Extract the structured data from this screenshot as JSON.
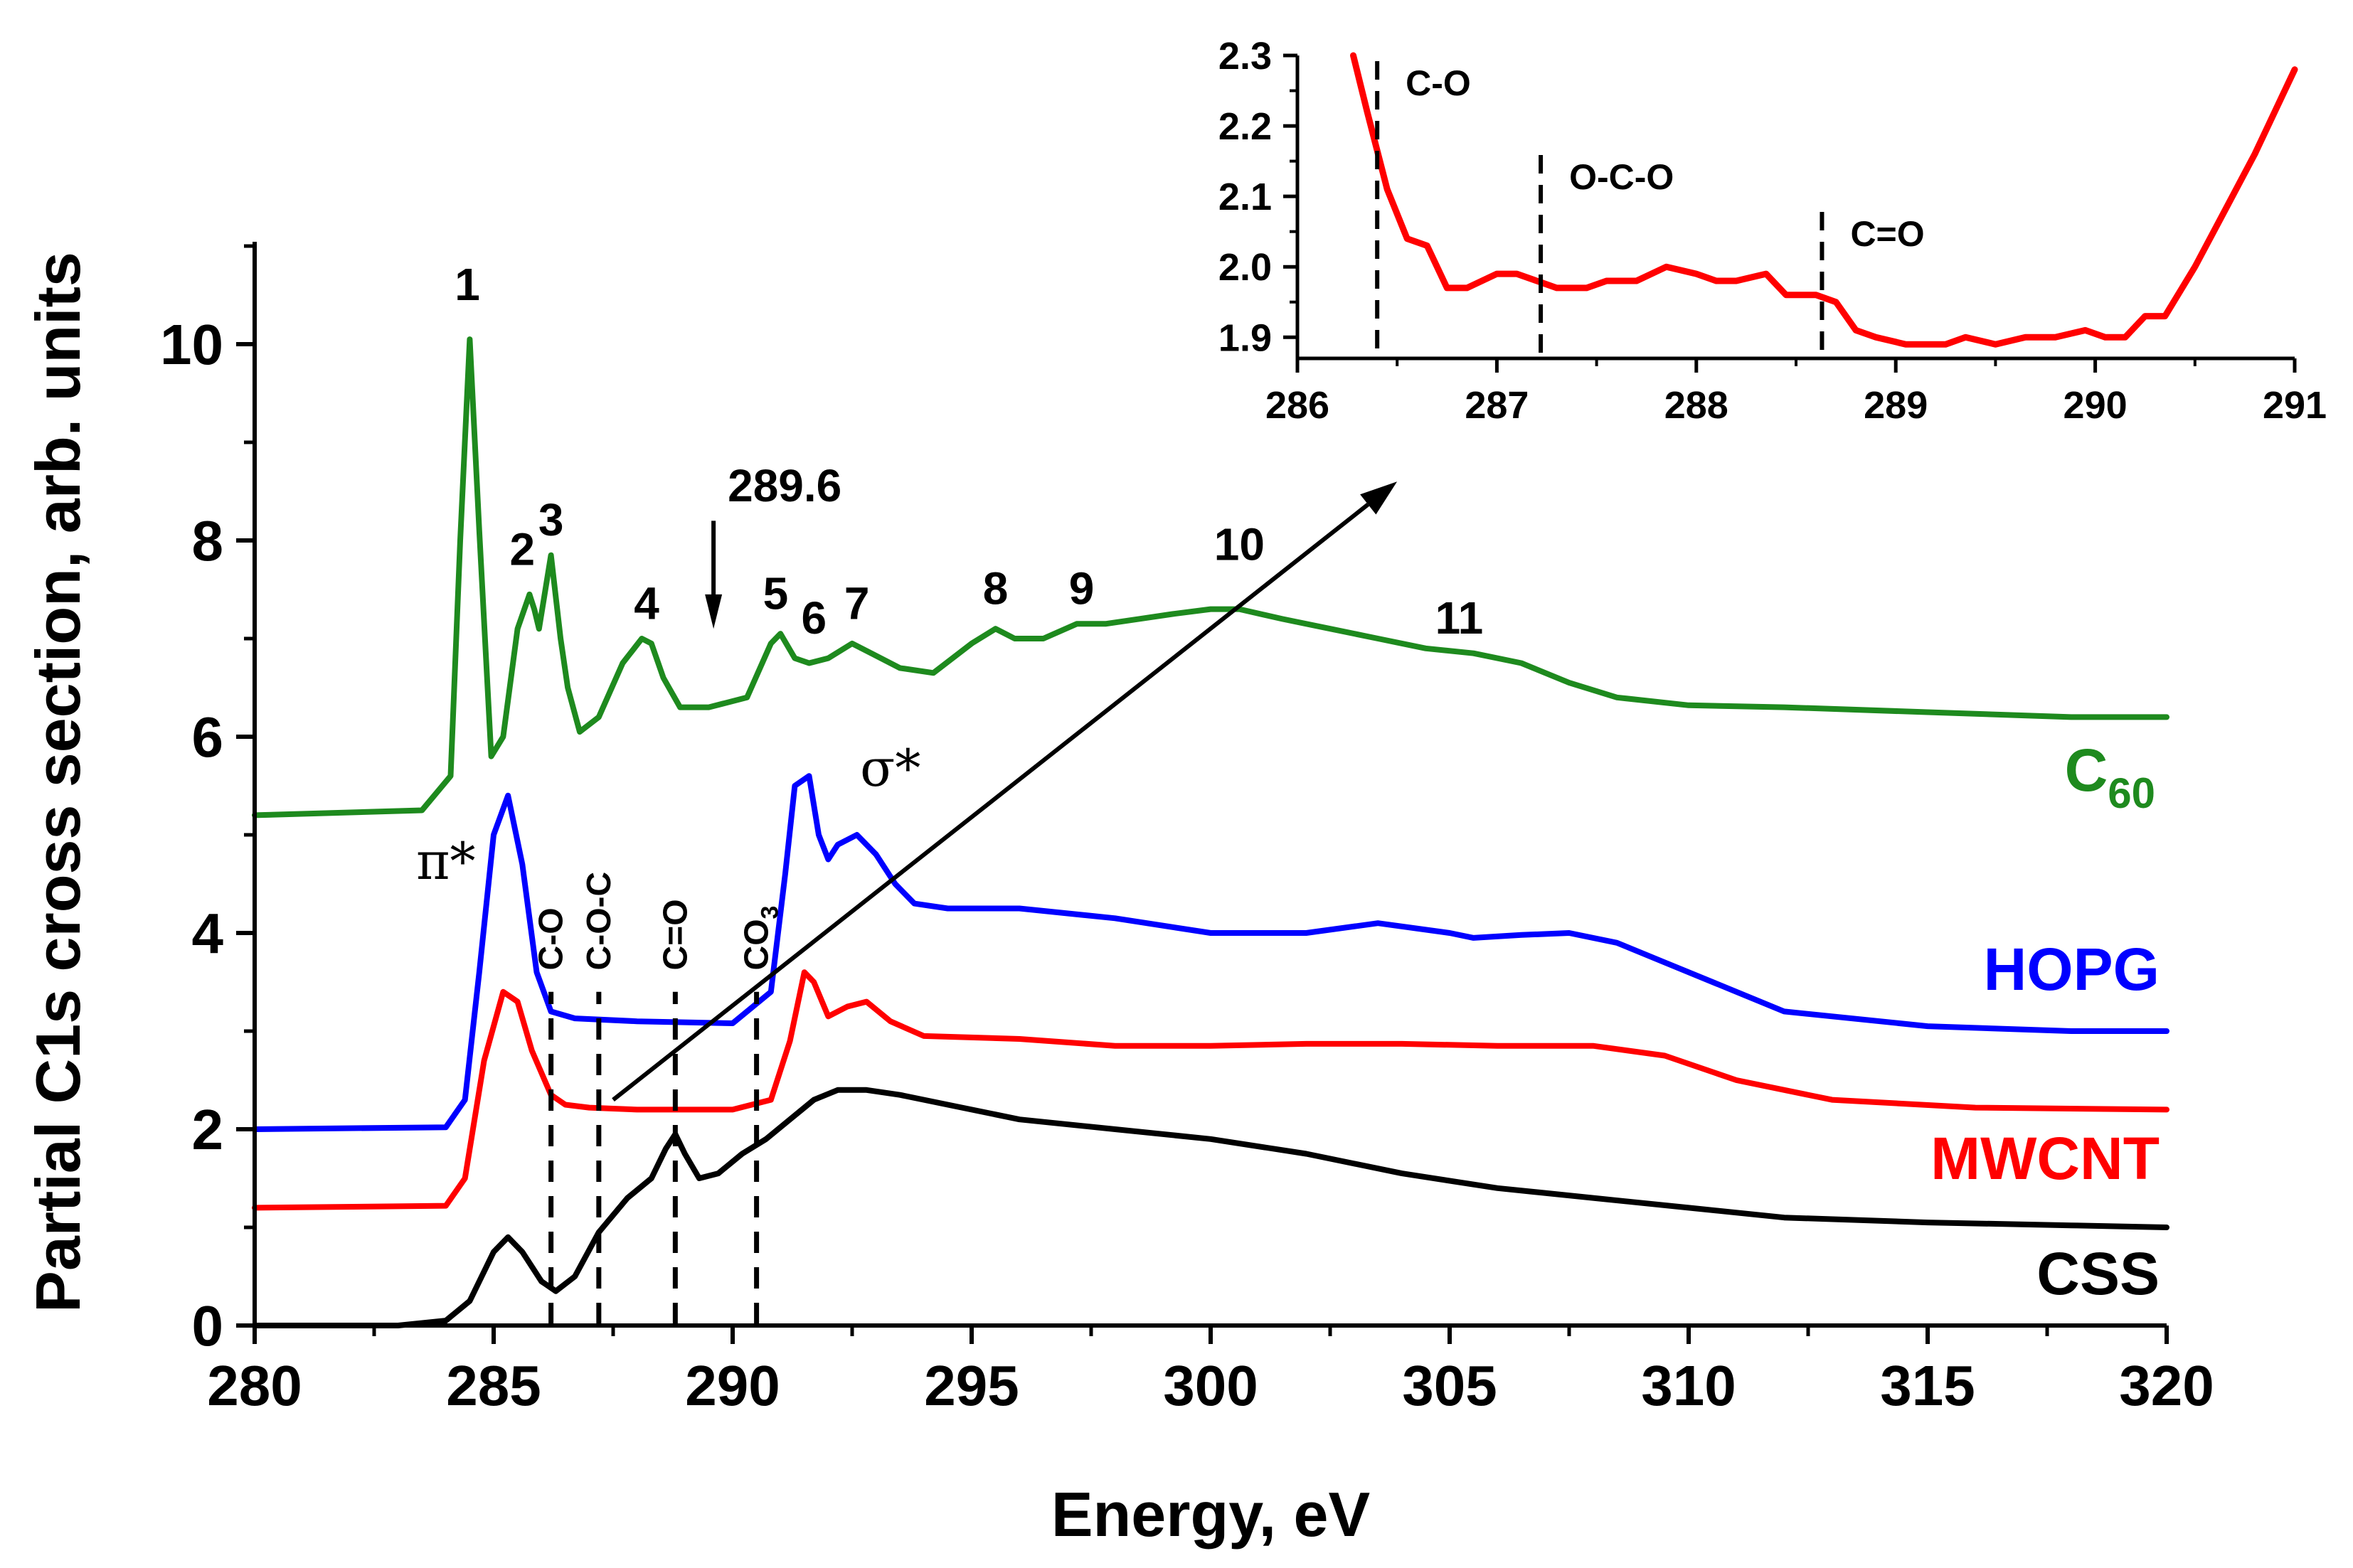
{
  "chart_data": [
    {
      "type": "line",
      "xlabel": "Energy, eV",
      "ylabel": "Partial C1s cross section, arb. units",
      "xlim": [
        280,
        320
      ],
      "ylim": [
        0,
        11
      ],
      "x_ticks": [
        "280",
        "285",
        "290",
        "295",
        "300",
        "305",
        "310",
        "315",
        "320"
      ],
      "y_ticks": [
        "0",
        "2",
        "4",
        "6",
        "8",
        "10"
      ],
      "series": [
        {
          "name": "C",
          "name_sub": "60",
          "color": "#1e8a1e",
          "x": [
            280,
            283.5,
            284.1,
            284.3,
            284.5,
            284.7,
            284.95,
            285.2,
            285.5,
            285.75,
            285.85,
            285.95,
            286.2,
            286.4,
            286.55,
            286.8,
            287.2,
            287.7,
            288.1,
            288.3,
            288.55,
            288.9,
            289.5,
            290.3,
            290.8,
            291.0,
            291.3,
            291.6,
            292.0,
            292.5,
            292.9,
            293.5,
            294.2,
            295.0,
            295.5,
            295.9,
            296.5,
            297.2,
            297.8,
            298.5,
            299.2,
            300.0,
            300.6,
            301.5,
            302.5,
            303.5,
            304.5,
            305.5,
            306.5,
            307.5,
            308.5,
            310.0,
            312.0,
            315.0,
            318.0,
            320.0
          ],
          "y": [
            5.2,
            5.25,
            5.6,
            8.0,
            10.05,
            8.1,
            5.8,
            6.0,
            7.1,
            7.45,
            7.3,
            7.1,
            7.85,
            7.0,
            6.5,
            6.05,
            6.2,
            6.75,
            7.0,
            6.95,
            6.6,
            6.3,
            6.3,
            6.4,
            6.95,
            7.05,
            6.8,
            6.75,
            6.8,
            6.95,
            6.85,
            6.7,
            6.65,
            6.95,
            7.1,
            7.0,
            7.0,
            7.15,
            7.15,
            7.2,
            7.25,
            7.3,
            7.3,
            7.2,
            7.1,
            7.0,
            6.9,
            6.85,
            6.75,
            6.55,
            6.4,
            6.32,
            6.3,
            6.25,
            6.2,
            6.2
          ]
        },
        {
          "name": "HOPG",
          "color": "#0000ff",
          "x": [
            280,
            284.0,
            284.4,
            284.7,
            285.0,
            285.3,
            285.6,
            285.9,
            286.2,
            286.7,
            288.0,
            290.0,
            290.8,
            291.1,
            291.3,
            291.6,
            291.8,
            292.0,
            292.2,
            292.6,
            293.0,
            293.4,
            293.8,
            294.5,
            296.0,
            298.0,
            300.0,
            302.0,
            303.5,
            305.0,
            305.5,
            306.5,
            307.5,
            308.5,
            309.5,
            310.5,
            312.0,
            315.0,
            318.0,
            320.0
          ],
          "y": [
            2.0,
            2.02,
            2.3,
            3.6,
            5.0,
            5.4,
            4.7,
            3.6,
            3.2,
            3.13,
            3.1,
            3.08,
            3.4,
            4.6,
            5.5,
            5.6,
            5.0,
            4.75,
            4.9,
            5.0,
            4.8,
            4.5,
            4.3,
            4.25,
            4.25,
            4.15,
            4.0,
            4.0,
            4.1,
            4.0,
            3.95,
            3.98,
            4.0,
            3.9,
            3.7,
            3.5,
            3.2,
            3.05,
            3.0,
            3.0
          ]
        },
        {
          "name": "MWCNT",
          "color": "#ff0000",
          "x": [
            280,
            284.0,
            284.4,
            284.8,
            285.2,
            285.5,
            285.8,
            286.2,
            286.5,
            287.0,
            288.0,
            290.0,
            290.8,
            291.2,
            291.5,
            291.7,
            292.0,
            292.4,
            292.8,
            293.3,
            294.0,
            296.0,
            298.0,
            300.0,
            302.0,
            304.0,
            306.0,
            308.0,
            309.5,
            311.0,
            313.0,
            316.0,
            320.0
          ],
          "y": [
            1.2,
            1.22,
            1.5,
            2.7,
            3.4,
            3.3,
            2.8,
            2.35,
            2.25,
            2.22,
            2.2,
            2.2,
            2.3,
            2.9,
            3.6,
            3.5,
            3.15,
            3.25,
            3.3,
            3.1,
            2.95,
            2.92,
            2.85,
            2.85,
            2.87,
            2.87,
            2.85,
            2.85,
            2.75,
            2.5,
            2.3,
            2.22,
            2.2
          ]
        },
        {
          "name": "CSS",
          "color": "#000000",
          "x": [
            280,
            283.0,
            284.0,
            284.5,
            285.0,
            285.3,
            285.6,
            286.0,
            286.3,
            286.7,
            287.2,
            287.8,
            288.3,
            288.6,
            288.8,
            289.0,
            289.3,
            289.7,
            290.2,
            290.7,
            291.2,
            291.7,
            292.2,
            292.8,
            293.5,
            294.5,
            296.0,
            298.0,
            300.0,
            302.0,
            304.0,
            306.0,
            308.0,
            310.0,
            312.0,
            315.0,
            318.0,
            320.0
          ],
          "y": [
            0.0,
            0.0,
            0.05,
            0.25,
            0.75,
            0.9,
            0.75,
            0.45,
            0.35,
            0.5,
            0.95,
            1.3,
            1.5,
            1.8,
            1.95,
            1.75,
            1.5,
            1.55,
            1.75,
            1.9,
            2.1,
            2.3,
            2.4,
            2.4,
            2.35,
            2.25,
            2.1,
            2.0,
            1.9,
            1.75,
            1.55,
            1.4,
            1.3,
            1.2,
            1.1,
            1.05,
            1.02,
            1.0
          ]
        }
      ],
      "peak_labels": [
        {
          "text": "1",
          "x": 284.45,
          "y": 10.45
        },
        {
          "text": "2",
          "x": 285.6,
          "y": 7.75
        },
        {
          "text": "3",
          "x": 286.2,
          "y": 8.05
        },
        {
          "text": "4",
          "x": 288.2,
          "y": 7.2
        },
        {
          "text": "5",
          "x": 290.9,
          "y": 7.3
        },
        {
          "text": "6",
          "x": 291.7,
          "y": 7.05
        },
        {
          "text": "7",
          "x": 292.6,
          "y": 7.2
        },
        {
          "text": "8",
          "x": 295.5,
          "y": 7.35
        },
        {
          "text": "9",
          "x": 297.3,
          "y": 7.35
        },
        {
          "text": "10",
          "x": 300.6,
          "y": 7.8
        },
        {
          "text": "11",
          "x": 305.2,
          "y": 7.05
        }
      ],
      "arrow_annotation": {
        "text": "289.6",
        "x": 289.6
      },
      "symbol_labels": [
        {
          "text": "π*",
          "x": 284.0,
          "y": 4.55
        },
        {
          "text": "σ*",
          "x": 293.3,
          "y": 5.5
        }
      ],
      "vertical_markers": [
        {
          "label": "C-O",
          "x": 286.2
        },
        {
          "label": "C-O-C",
          "x": 287.2
        },
        {
          "label": "C=O",
          "x": 288.8
        },
        {
          "label": "CO3",
          "x": 290.5
        }
      ],
      "callout_arrow": {
        "from_x": 287.5,
        "from_y": 2.3,
        "to_x": 303.9,
        "to_y": 8.6
      }
    },
    {
      "type": "line",
      "role": "inset",
      "xlim": [
        286,
        291
      ],
      "ylim": [
        1.87,
        2.3
      ],
      "x_ticks": [
        "286",
        "287",
        "288",
        "289",
        "290",
        "291"
      ],
      "y_ticks": [
        "1.9",
        "2.0",
        "2.1",
        "2.2",
        "2.3"
      ],
      "series": [
        {
          "name": "MWCNT",
          "color": "#ff0000",
          "x": [
            286.28,
            286.35,
            286.45,
            286.55,
            286.65,
            286.75,
            286.85,
            287.0,
            287.1,
            287.2,
            287.3,
            287.45,
            287.55,
            287.7,
            287.85,
            288.0,
            288.1,
            288.2,
            288.35,
            288.45,
            288.6,
            288.7,
            288.8,
            288.9,
            289.05,
            289.15,
            289.25,
            289.35,
            289.5,
            289.65,
            289.8,
            289.95,
            290.05,
            290.15,
            290.25,
            290.35,
            290.5,
            290.65,
            290.8,
            291.0
          ],
          "y": [
            2.3,
            2.22,
            2.11,
            2.04,
            2.03,
            1.97,
            1.97,
            1.99,
            1.99,
            1.98,
            1.97,
            1.97,
            1.98,
            1.98,
            2.0,
            1.99,
            1.98,
            1.98,
            1.99,
            1.96,
            1.96,
            1.95,
            1.91,
            1.9,
            1.89,
            1.89,
            1.89,
            1.9,
            1.89,
            1.9,
            1.9,
            1.91,
            1.9,
            1.9,
            1.93,
            1.93,
            2.0,
            2.08,
            2.16,
            2.28
          ]
        }
      ],
      "vertical_markers": [
        {
          "label": "C-O",
          "x": 286.4
        },
        {
          "label": "O-C-O",
          "x": 287.22
        },
        {
          "label": "C=O",
          "x": 288.63
        }
      ]
    }
  ]
}
